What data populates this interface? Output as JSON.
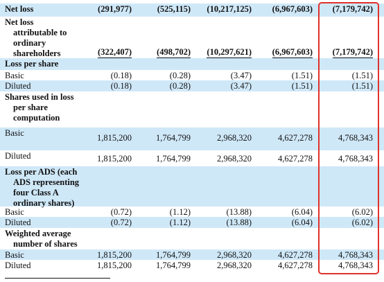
{
  "table": {
    "rows": [
      {
        "label": "Net loss",
        "bold": true,
        "shade": true,
        "values": [
          "(291,977)",
          "(525,115)",
          "(10,217,125)",
          "(6,967,603)",
          "(7,179,742)"
        ],
        "bold_values": true
      },
      {
        "label": "Net loss attributable to ordinary shareholders",
        "bold": true,
        "shade": false,
        "values": [
          "(322,407)",
          "(498,702)",
          "(10,297,621)",
          "(6,967,603)",
          "(7,179,742)"
        ],
        "bold_values": true,
        "double_underline": true
      },
      {
        "label": "Loss per share",
        "bold": true,
        "shade": true,
        "values": [
          "",
          "",
          "",
          "",
          ""
        ]
      },
      {
        "label": "Basic",
        "bold": false,
        "shade": false,
        "values": [
          "(0.18)",
          "(0.28)",
          "(3.47)",
          "(1.51)",
          "(1.51)"
        ]
      },
      {
        "label": "Diluted",
        "bold": false,
        "shade": true,
        "values": [
          "(0.18)",
          "(0.28)",
          "(3.47)",
          "(1.51)",
          "(1.51)"
        ]
      },
      {
        "label": "Shares used in loss per share computation",
        "bold": true,
        "shade": false,
        "values": [
          "",
          "",
          "",
          "",
          ""
        ]
      },
      {
        "label": "Basic",
        "bold": false,
        "shade": true,
        "values": [
          "1,815,200",
          "1,764,799",
          "2,968,320",
          "4,627,278",
          "4,768,343"
        ]
      },
      {
        "label": "Diluted",
        "bold": false,
        "shade": false,
        "values": [
          "1,815,200",
          "1,764,799",
          "2,968,320",
          "4,627,278",
          "4,768,343"
        ]
      },
      {
        "label": "Loss per ADS (each ADS representing four Class A ordinary shares)",
        "bold": true,
        "shade": true,
        "values": [
          "",
          "",
          "",
          "",
          ""
        ]
      },
      {
        "label": "Basic",
        "bold": false,
        "shade": false,
        "values": [
          "(0.72)",
          "(1.12)",
          "(13.88)",
          "(6.04)",
          "(6.02)"
        ]
      },
      {
        "label": "Diluted",
        "bold": false,
        "shade": true,
        "values": [
          "(0.72)",
          "(1.12)",
          "(13.88)",
          "(6.04)",
          "(6.02)"
        ]
      },
      {
        "label": "Weighted average number of shares",
        "bold": true,
        "shade": false,
        "values": [
          "",
          "",
          "",
          "",
          ""
        ]
      },
      {
        "label": "Basic",
        "bold": false,
        "shade": true,
        "values": [
          "1,815,200",
          "1,764,799",
          "2,968,320",
          "4,627,278",
          "4,768,343"
        ]
      },
      {
        "label": "Diluted",
        "bold": false,
        "shade": false,
        "values": [
          "1,815,200",
          "1,764,799",
          "2,968,320",
          "4,627,278",
          "4,768,343"
        ]
      }
    ]
  },
  "highlight_color": "#e0312b",
  "row_shade_color": "#cfe8f8"
}
